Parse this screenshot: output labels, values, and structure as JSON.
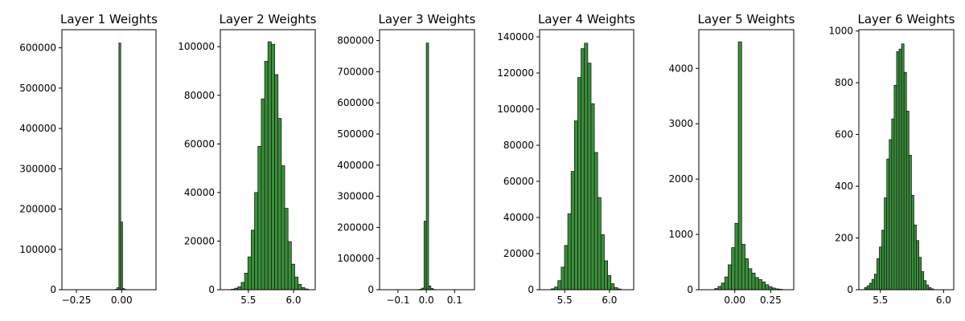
{
  "chart_data": [
    {
      "type": "bar",
      "title": "Layer 1 Weights",
      "xlim": [
        -0.33,
        0.19
      ],
      "ylim": [
        0,
        645000
      ],
      "xticks": [
        -0.25,
        0.0
      ],
      "xtick_labels": [
        "−0.25",
        "0.00"
      ],
      "yticks": [
        0,
        100000,
        200000,
        300000,
        400000,
        500000,
        600000
      ],
      "ytick_labels": [
        "0",
        "100000",
        "200000",
        "300000",
        "400000",
        "500000",
        "600000"
      ],
      "bin_start": -0.045,
      "bin_width": 0.01,
      "values": [
        300,
        1200,
        5000,
        612000,
        168000,
        3000,
        800,
        200
      ],
      "bar_color": "#2e8b2e"
    },
    {
      "type": "bar",
      "title": "Layer 2 Weights",
      "xlim": [
        5.19,
        6.24
      ],
      "ylim": [
        0,
        107000
      ],
      "xticks": [
        5.5,
        6.0
      ],
      "xtick_labels": [
        "5.5",
        "6.0"
      ],
      "yticks": [
        0,
        20000,
        40000,
        60000,
        80000,
        100000
      ],
      "ytick_labels": [
        "0",
        "20000",
        "40000",
        "60000",
        "80000",
        "100000"
      ],
      "bin_start": 5.31,
      "bin_width": 0.037,
      "values": [
        200,
        600,
        1200,
        3000,
        6800,
        13500,
        24500,
        40000,
        59000,
        78500,
        94000,
        102000,
        101000,
        88500,
        70500,
        51000,
        33500,
        19800,
        10500,
        5200,
        2200,
        900,
        300
      ],
      "bar_color": "#2e8b2e"
    },
    {
      "type": "bar",
      "title": "Layer 3 Weights",
      "xlim": [
        -0.165,
        0.17
      ],
      "ylim": [
        0,
        835000
      ],
      "xticks": [
        -0.1,
        0.0,
        0.1
      ],
      "xtick_labels": [
        "−0.1",
        "0.0",
        "0.1"
      ],
      "yticks": [
        0,
        100000,
        200000,
        300000,
        400000,
        500000,
        600000,
        700000,
        800000
      ],
      "ytick_labels": [
        "0",
        "100000",
        "200000",
        "300000",
        "400000",
        "500000",
        "600000",
        "700000",
        "800000"
      ],
      "bin_start": -0.024,
      "bin_width": 0.008,
      "values": [
        1500,
        5000,
        220000,
        792000,
        12000,
        4000,
        800
      ],
      "bar_color": "#2e8b2e"
    },
    {
      "type": "bar",
      "title": "Layer 4 Weights",
      "xlim": [
        5.22,
        6.27
      ],
      "ylim": [
        0,
        144000
      ],
      "xticks": [
        5.5,
        6.0
      ],
      "xtick_labels": [
        "5.5",
        "6.0"
      ],
      "yticks": [
        0,
        20000,
        40000,
        60000,
        80000,
        100000,
        120000,
        140000
      ],
      "ytick_labels": [
        "0",
        "20000",
        "40000",
        "60000",
        "80000",
        "100000",
        "120000",
        "140000"
      ],
      "bin_start": 5.35,
      "bin_width": 0.037,
      "values": [
        500,
        1500,
        5000,
        12500,
        24500,
        42000,
        65500,
        93500,
        117500,
        133500,
        136500,
        125500,
        103000,
        76000,
        51000,
        30500,
        16000,
        7800,
        3300,
        1200,
        400
      ],
      "bar_color": "#2e8b2e"
    },
    {
      "type": "bar",
      "title": "Layer 5 Weights",
      "xlim": [
        -0.25,
        0.41
      ],
      "ylim": [
        0,
        4700
      ],
      "xticks": [
        0.0,
        0.25
      ],
      "xtick_labels": [
        "0.00",
        "0.25"
      ],
      "yticks": [
        0,
        1000,
        2000,
        3000,
        4000
      ],
      "ytick_labels": [
        "0",
        "1000",
        "2000",
        "3000",
        "4000"
      ],
      "bin_start": -0.14,
      "bin_width": 0.0235,
      "values": [
        20,
        60,
        120,
        230,
        450,
        760,
        1200,
        4480,
        820,
        560,
        380,
        300,
        220,
        185,
        140,
        90,
        55,
        30,
        15,
        8
      ],
      "bar_color": "#2e8b2e"
    },
    {
      "type": "bar",
      "title": "Layer 6 Weights",
      "xlim": [
        5.33,
        6.08
      ],
      "ylim": [
        0,
        1005
      ],
      "xticks": [
        5.5,
        6.0
      ],
      "xtick_labels": [
        "5.5",
        "6.0"
      ],
      "yticks": [
        0,
        200,
        400,
        600,
        800,
        1000
      ],
      "ytick_labels": [
        "0",
        "200",
        "400",
        "600",
        "800",
        "1000"
      ],
      "bin_start": 5.375,
      "bin_width": 0.0195,
      "values": [
        8,
        15,
        25,
        40,
        60,
        120,
        165,
        230,
        355,
        505,
        580,
        660,
        790,
        920,
        930,
        950,
        840,
        690,
        520,
        365,
        250,
        190,
        125,
        70,
        35,
        18,
        8,
        3
      ],
      "bar_color": "#2e8b2e"
    }
  ]
}
